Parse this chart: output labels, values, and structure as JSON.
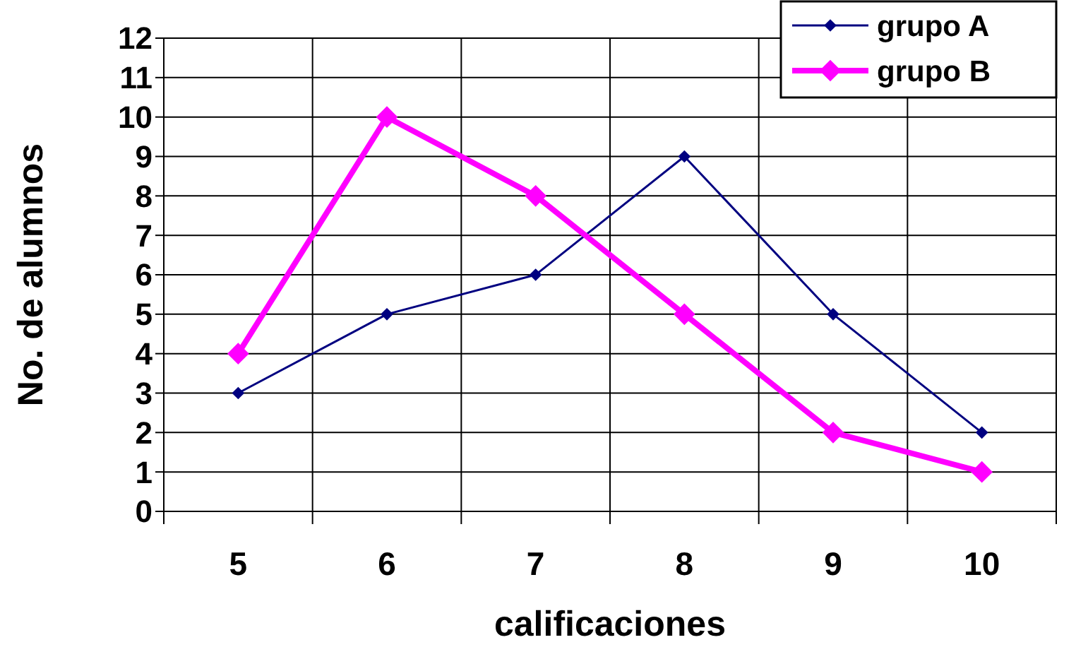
{
  "chart_data": {
    "type": "line",
    "xlabel": "calificaciones",
    "ylabel": "No. de alumnos",
    "categories": [
      "5",
      "6",
      "7",
      "8",
      "9",
      "10"
    ],
    "series": [
      {
        "name": "grupo A",
        "color": "#000080",
        "values": [
          3,
          5,
          6,
          9,
          5,
          2
        ]
      },
      {
        "name": "grupo B",
        "color": "#ff00ff",
        "values": [
          4,
          10,
          8,
          5,
          2,
          1
        ]
      }
    ],
    "ylim": [
      0,
      12
    ],
    "yticks": [
      0,
      1,
      2,
      3,
      4,
      5,
      6,
      7,
      8,
      9,
      10,
      11,
      12
    ],
    "grid": true,
    "legend": "top right",
    "marker": "diamond",
    "line_style": "solid"
  }
}
